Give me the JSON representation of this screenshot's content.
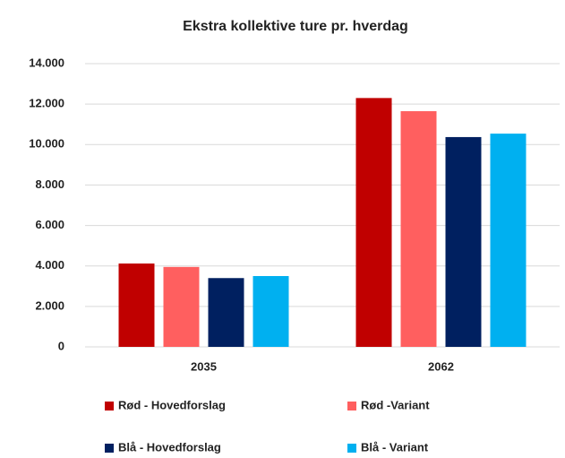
{
  "chart_data": {
    "type": "bar",
    "title": "Ekstra kollektive ture pr. hverdag",
    "categories": [
      "2035",
      "2062"
    ],
    "series": [
      {
        "name": "Rød - Hovedforslag",
        "color": "#c00000",
        "values": [
          4120,
          12300
        ]
      },
      {
        "name": "Rød -Variant",
        "color": "#ff5f5f",
        "values": [
          3950,
          11650
        ]
      },
      {
        "name": "Blå - Hovedforslag",
        "color": "#002060",
        "values": [
          3400,
          10370
        ]
      },
      {
        "name": "Blå - Variant",
        "color": "#00b0f0",
        "values": [
          3500,
          10540
        ]
      }
    ],
    "ylim": [
      0,
      14000
    ],
    "yticks": [
      0,
      {
        "value": 2000,
        "label": "2.000"
      },
      {
        "value": 4000,
        "label": "4.000"
      },
      {
        "value": 6000,
        "label": "6.000"
      },
      {
        "value": 8000,
        "label": "8.000"
      },
      {
        "value": 10000,
        "label": "10.000"
      },
      {
        "value": 12000,
        "label": "12.000"
      },
      {
        "value": 14000,
        "label": "14.000"
      }
    ],
    "grid": true,
    "legend": "bottom"
  }
}
